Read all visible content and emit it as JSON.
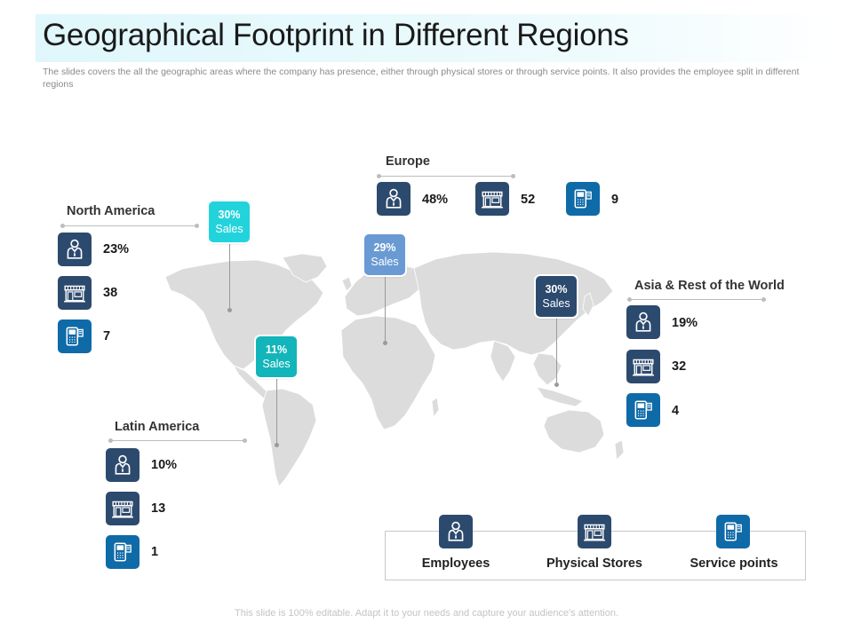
{
  "title": "Geographical Footprint in Different Regions",
  "subtitle": "The slides covers the all the geographic areas where the company has presence, either through physical stores or through service points. It also provides the employee split in different regions",
  "footer": "This slide is 100% editable. Adapt it to your needs and capture your audience's attention.",
  "colors": {
    "navy": "#2c4a6e",
    "service_blue": "#0f6aa8",
    "cyan": "#23d3dc",
    "teal": "#12b5b9",
    "light_blue": "#6a9ad3",
    "map_gray": "#d9d9d9"
  },
  "icons": {
    "employees": "employee-icon",
    "stores": "store-icon",
    "service": "service-point-icon"
  },
  "regions": {
    "north_america": {
      "name": "North America",
      "employees": "23%",
      "stores": "38",
      "service_points": "7",
      "sales_pct": "30%",
      "sales_label": "Sales"
    },
    "europe": {
      "name": "Europe",
      "employees": "48%",
      "stores": "52",
      "service_points": "9",
      "sales_pct": "29%",
      "sales_label": "Sales"
    },
    "asia": {
      "name": "Asia & Rest of the World",
      "employees": "19%",
      "stores": "32",
      "service_points": "4",
      "sales_pct": "30%",
      "sales_label": "Sales"
    },
    "latin_america": {
      "name": "Latin America",
      "employees": "10%",
      "stores": "13",
      "service_points": "1",
      "sales_pct": "11%",
      "sales_label": "Sales"
    }
  },
  "legend": {
    "employees": "Employees",
    "stores": "Physical Stores",
    "service": "Service points"
  }
}
